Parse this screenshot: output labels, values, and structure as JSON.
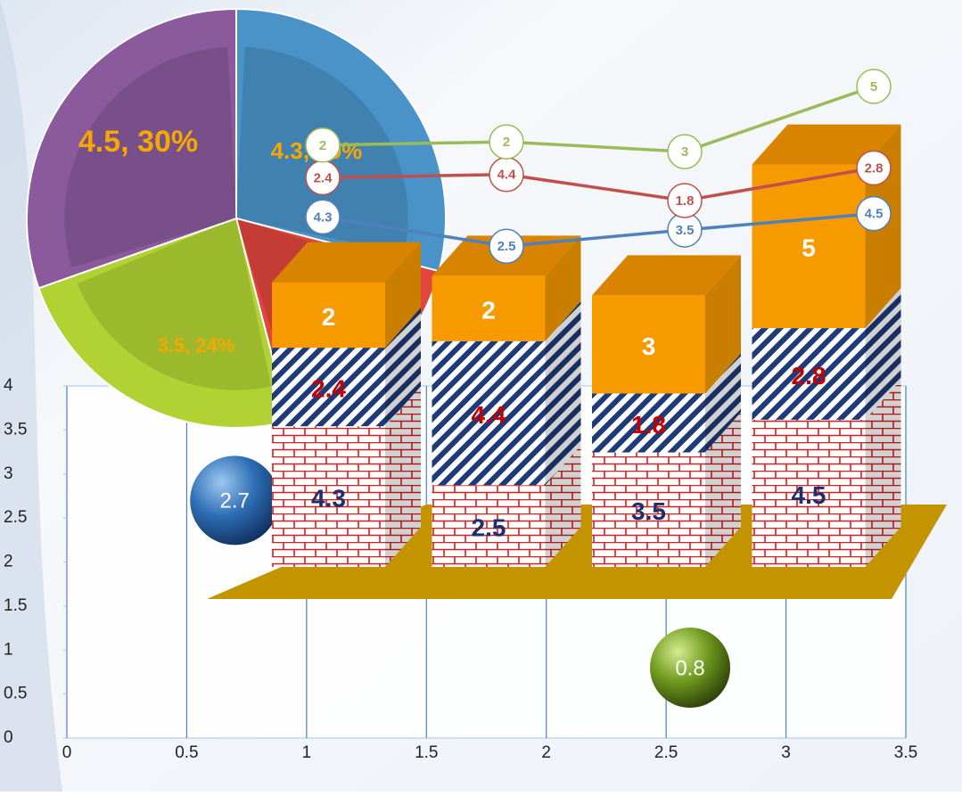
{
  "chart_data": [
    {
      "type": "scatter",
      "x": [
        0.7,
        2.6
      ],
      "y": [
        2.7,
        0.8
      ],
      "colors": [
        "#2f6eb5",
        "#6f9a1e"
      ],
      "xlim": [
        0,
        3.5
      ],
      "xticks": [
        0,
        0.5,
        1,
        1.5,
        2,
        2.5,
        3,
        3.5
      ],
      "ylim": [
        0,
        4
      ],
      "yticks": [
        0,
        0.5,
        1,
        1.5,
        2,
        2.5,
        3,
        3.5,
        4
      ],
      "grid": "x"
    },
    {
      "type": "pie",
      "values": [
        4.3,
        2.5,
        3.5,
        4.5
      ],
      "value_labels": [
        "4.3, 29%",
        null,
        "3.5, 24%",
        "4.5, 30%"
      ],
      "colors": [
        "#4a93c9",
        "#e0463c",
        "#b2d234",
        "#8a5a9c"
      ]
    },
    {
      "type": "bar",
      "stacked": true,
      "series": [
        {
          "color": "#c00000",
          "pattern": "brick",
          "values": [
            4.3,
            2.5,
            3.5,
            4.5
          ]
        },
        {
          "color": "#1f3a78",
          "pattern": "stripes",
          "values": [
            2.4,
            4.4,
            1.8,
            2.8
          ]
        },
        {
          "color": "#f79a00",
          "pattern": "solid",
          "values": [
            2,
            2,
            3,
            5
          ]
        }
      ]
    },
    {
      "type": "line",
      "stacked": true,
      "series": [
        {
          "color": "#4f81bd",
          "values": [
            4.3,
            2.5,
            3.5,
            4.5
          ]
        },
        {
          "color": "#c0504d",
          "values": [
            2.4,
            4.4,
            1.8,
            2.8
          ]
        },
        {
          "color": "#9bbb59",
          "values": [
            2,
            2,
            3,
            5
          ]
        }
      ]
    }
  ]
}
